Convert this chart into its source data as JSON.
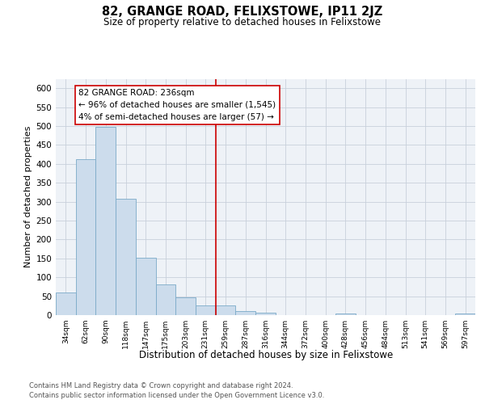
{
  "title": "82, GRANGE ROAD, FELIXSTOWE, IP11 2JZ",
  "subtitle": "Size of property relative to detached houses in Felixstowe",
  "xlabel": "Distribution of detached houses by size in Felixstowe",
  "ylabel": "Number of detached properties",
  "bar_color": "#ccdcec",
  "bar_edge_color": "#7aaac8",
  "bins": [
    "34sqm",
    "62sqm",
    "90sqm",
    "118sqm",
    "147sqm",
    "175sqm",
    "203sqm",
    "231sqm",
    "259sqm",
    "287sqm",
    "316sqm",
    "344sqm",
    "372sqm",
    "400sqm",
    "428sqm",
    "456sqm",
    "484sqm",
    "513sqm",
    "541sqm",
    "569sqm",
    "597sqm"
  ],
  "values": [
    60,
    413,
    497,
    307,
    151,
    82,
    47,
    25,
    25,
    10,
    7,
    0,
    0,
    0,
    5,
    0,
    0,
    0,
    0,
    0,
    5
  ],
  "vline_bin_index": 7,
  "vline_color": "#cc0000",
  "annotation_line1": "82 GRANGE ROAD: 236sqm",
  "annotation_line2": "← 96% of detached houses are smaller (1,545)",
  "annotation_line3": "4% of semi-detached houses are larger (57) →",
  "yticks": [
    0,
    50,
    100,
    150,
    200,
    250,
    300,
    350,
    400,
    450,
    500,
    550,
    600
  ],
  "ylim": [
    0,
    625
  ],
  "footer1": "Contains HM Land Registry data © Crown copyright and database right 2024.",
  "footer2": "Contains public sector information licensed under the Open Government Licence v3.0.",
  "bg_color": "#eef2f7",
  "grid_color": "#c8d0db"
}
